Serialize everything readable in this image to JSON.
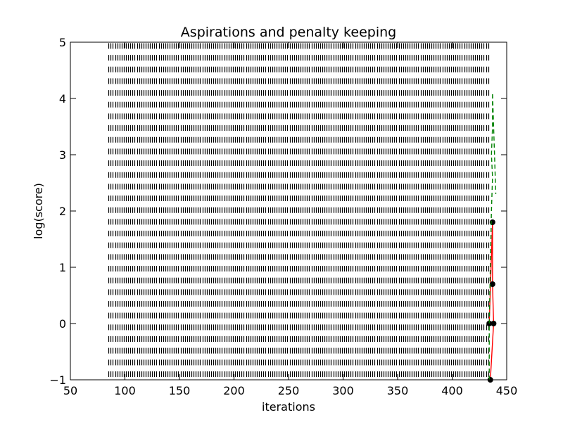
{
  "chart_data": {
    "type": "line",
    "title": "Aspirations and penalty keeping",
    "xlabel": "iterations",
    "ylabel": "log(score)",
    "xlim": [
      50,
      450
    ],
    "ylim": [
      -1,
      5
    ],
    "xticks": [
      50,
      100,
      150,
      200,
      250,
      300,
      350,
      400,
      450
    ],
    "yticks": [
      -1,
      0,
      1,
      2,
      3,
      4,
      5
    ],
    "xtick_labels": [
      "50",
      "100",
      "150",
      "200",
      "250",
      "300",
      "350",
      "400",
      "450"
    ],
    "ytick_labels": [
      "−1",
      "0",
      "1",
      "2",
      "3",
      "4",
      "5"
    ],
    "grid": false,
    "legend": "none",
    "aspiration_markers": {
      "style": "short black vertical ticks",
      "color": "#000000",
      "x_start": 85,
      "x_end": 434,
      "x_step": 2,
      "y_start": -0.9,
      "y_end": 4.9,
      "y_step": 0.2083
    },
    "series": [
      {
        "style": "solid red line with black circle markers",
        "color": "#ff0000",
        "marker_color": "#000000",
        "points": [
          {
            "x": 434,
            "y": 0.0
          },
          {
            "x": 437,
            "y": 1.8
          },
          {
            "x": 437,
            "y": 0.7
          },
          {
            "x": 438,
            "y": 0.0
          },
          {
            "x": 435,
            "y": -1.0
          }
        ]
      },
      {
        "style": "dashed green line",
        "color": "#008000",
        "points": [
          {
            "x": 434,
            "y": -1.0
          },
          {
            "x": 434,
            "y": 0.0
          },
          {
            "x": 435,
            "y": 1.0
          },
          {
            "x": 436,
            "y": 2.0
          },
          {
            "x": 437,
            "y": 2.6
          },
          {
            "x": 436,
            "y": 3.0
          },
          {
            "x": 437,
            "y": 3.5
          },
          {
            "x": 437,
            "y": 4.1
          },
          {
            "x": 440,
            "y": 2.3
          }
        ]
      }
    ]
  }
}
